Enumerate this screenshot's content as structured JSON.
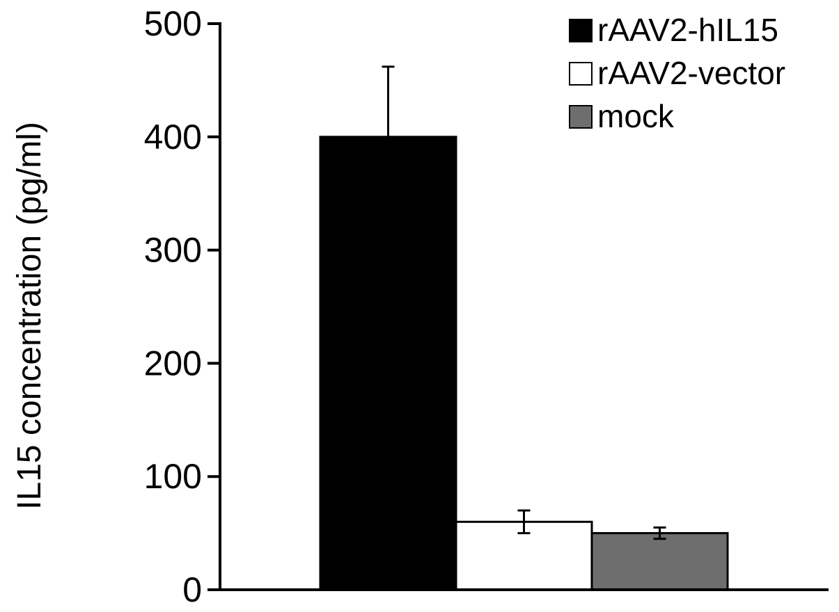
{
  "chart_data": {
    "type": "bar",
    "title": "",
    "xlabel": "",
    "ylabel": "IL15 concentration (pg/ml)",
    "ylim": [
      0,
      500
    ],
    "yticks": [
      0,
      100,
      200,
      300,
      400,
      500
    ],
    "grid": false,
    "legend_position": "top-right",
    "series": [
      {
        "name": "rAAV2-hIL15",
        "value": 400,
        "error": 62,
        "color": "#000000"
      },
      {
        "name": "rAAV2-vector",
        "value": 60,
        "error": 10,
        "color": "#ffffff"
      },
      {
        "name": "mock",
        "value": 50,
        "error": 5,
        "color": "#6e6e6e"
      }
    ]
  }
}
